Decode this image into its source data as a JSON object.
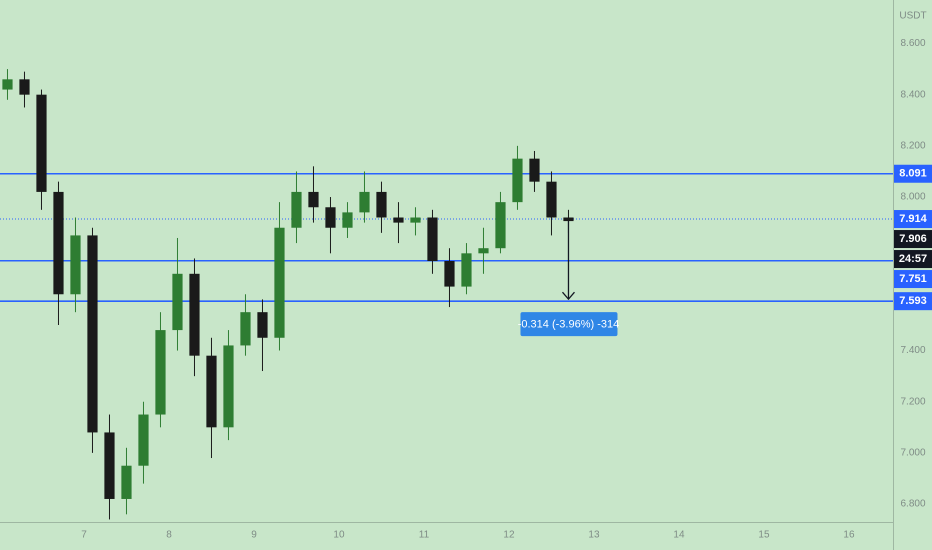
{
  "chart_data": {
    "type": "candlestick",
    "currency": "USDT",
    "x": [
      6.1,
      6.3,
      6.5,
      6.7,
      6.9,
      7.1,
      7.3,
      7.5,
      7.7,
      7.9,
      8.1,
      8.3,
      8.5,
      8.7,
      8.9,
      9.1,
      9.3,
      9.5,
      9.7,
      9.9,
      10.1,
      10.3,
      10.5,
      10.7,
      10.9,
      11.1,
      11.3,
      11.5,
      11.7,
      11.9,
      12.1,
      12.3,
      12.5,
      12.7
    ],
    "open": [
      8.42,
      8.46,
      8.4,
      8.02,
      7.62,
      7.85,
      7.08,
      6.82,
      6.95,
      7.15,
      7.48,
      7.7,
      7.38,
      7.1,
      7.42,
      7.55,
      7.45,
      7.88,
      8.02,
      7.96,
      7.88,
      7.94,
      8.02,
      7.92,
      7.9,
      7.92,
      7.75,
      7.65,
      7.78,
      7.8,
      7.98,
      8.15,
      8.06,
      7.92
    ],
    "high": [
      8.5,
      8.49,
      8.42,
      8.06,
      7.92,
      7.88,
      7.15,
      7.02,
      7.2,
      7.55,
      7.84,
      7.76,
      7.45,
      7.48,
      7.62,
      7.6,
      7.98,
      8.1,
      8.12,
      8.0,
      7.98,
      8.1,
      8.06,
      7.98,
      7.96,
      7.95,
      7.8,
      7.82,
      7.88,
      8.02,
      8.2,
      8.18,
      8.1,
      7.95
    ],
    "low": [
      8.38,
      8.35,
      7.95,
      7.5,
      7.55,
      7.0,
      6.74,
      6.76,
      6.88,
      7.1,
      7.4,
      7.3,
      6.98,
      7.05,
      7.38,
      7.32,
      7.4,
      7.82,
      7.9,
      7.78,
      7.84,
      7.9,
      7.86,
      7.82,
      7.85,
      7.7,
      7.57,
      7.62,
      7.7,
      7.78,
      7.95,
      8.02,
      7.85,
      7.86
    ],
    "close": [
      8.46,
      8.4,
      8.02,
      7.62,
      7.85,
      7.08,
      6.82,
      6.95,
      7.15,
      7.48,
      7.7,
      7.38,
      7.1,
      7.42,
      7.55,
      7.45,
      7.88,
      8.02,
      7.96,
      7.88,
      7.94,
      8.02,
      7.92,
      7.9,
      7.92,
      7.75,
      7.65,
      7.78,
      7.8,
      7.98,
      8.15,
      8.06,
      7.92,
      7.906
    ],
    "up_color": "#2e7d32",
    "down_color": "#1a1a1a",
    "xlim": [
      6.012,
      16.518
    ],
    "xticks": [
      7,
      8,
      9,
      10,
      11,
      12,
      13,
      14,
      15,
      16
    ],
    "ylim": [
      6.73,
      8.77
    ],
    "yticks": [
      {
        "value": 8.6,
        "label": "8.600"
      },
      {
        "value": 8.4,
        "label": "8.400"
      },
      {
        "value": 8.2,
        "label": "8.200"
      },
      {
        "value": 8.0,
        "label": "8.000"
      },
      {
        "value": 7.4,
        "label": "7.400"
      },
      {
        "value": 7.2,
        "label": "7.200"
      },
      {
        "value": 7.0,
        "label": "7.000"
      },
      {
        "value": 6.8,
        "label": "6.800"
      }
    ],
    "grid": false,
    "levels": [
      {
        "value": 8.091,
        "color": "#2962ff",
        "style": "solid"
      },
      {
        "value": 7.914,
        "color": "#2962ff",
        "style": "dotted"
      },
      {
        "value": 7.751,
        "color": "#2962ff",
        "style": "solid"
      },
      {
        "value": 7.593,
        "color": "#2962ff",
        "style": "solid"
      }
    ],
    "countdown": "24:57",
    "measure_label": "-0.314 (-3.96%) -314",
    "measure_color": "#2f86e6"
  }
}
